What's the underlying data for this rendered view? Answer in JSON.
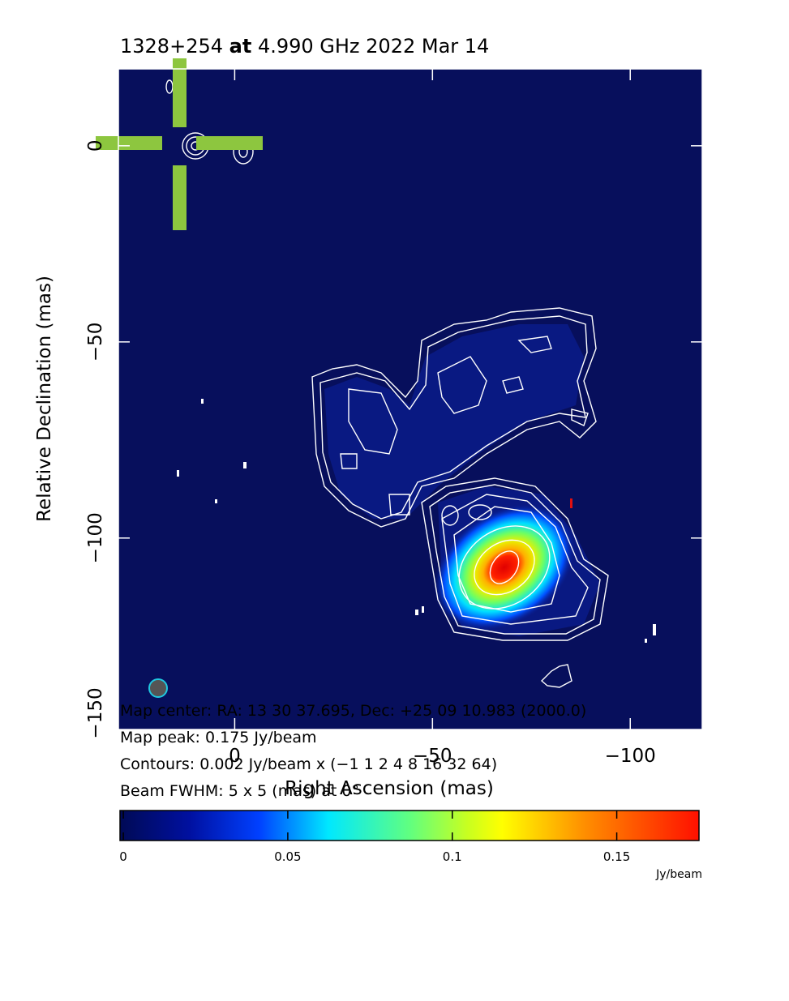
{
  "chart_data": {
    "type": "image",
    "title": {
      "source": "1328+254",
      "at": "at",
      "rest": "4.990 GHz 2022 Mar 14"
    },
    "x_label": "Right Ascension  (mas)",
    "y_label": "Relative Declination  (mas)",
    "xlim": [
      29.4,
      -118.2
    ],
    "xticks": [
      0,
      {
        "value": -50,
        "label": "−50"
      },
      {
        "value": -100,
        "label": "−100"
      }
    ],
    "ylim": [
      -148.8,
      19.6
    ],
    "yticks": [
      0,
      {
        "value": -50,
        "label": "−50"
      },
      {
        "value": -100,
        "label": "−100"
      },
      {
        "value": -150,
        "label": "−150"
      }
    ],
    "info": [
      "Map center:  RA: 13 30 37.695,  Dec: +25 09 10.983 (2000.0)",
      "Map peak: 0.175 Jy/beam",
      "Contours: 0.002 Jy/beam x (−1 1 2 4 8 16 32 64)",
      "Beam FWHM: 5 x 5 (mas) at 0°"
    ],
    "colorbar": {
      "clim": [
        -0.001,
        0.175
      ],
      "ticks": [
        0,
        0.05,
        0.1,
        0.15
      ],
      "unit": "Jy/beam"
    }
  }
}
